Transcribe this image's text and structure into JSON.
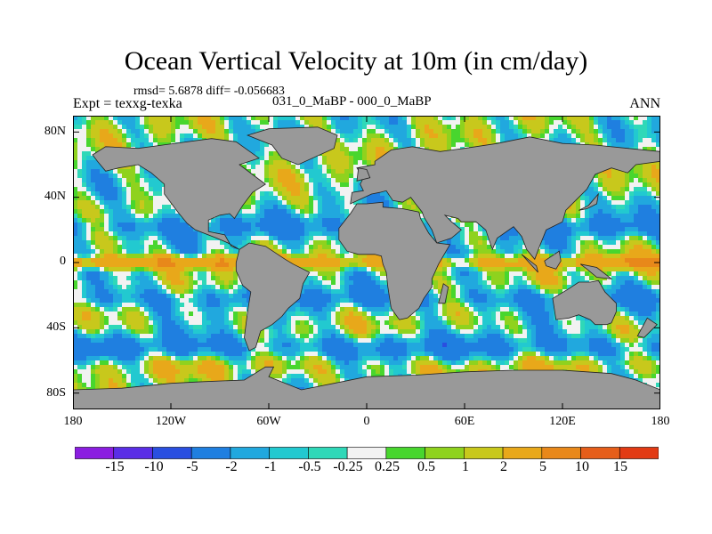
{
  "title": "Ocean Vertical Velocity at 10m (in cm/day)",
  "stats": "rmsd= 5.6878 diff= -0.056683",
  "experiment": "Expt = texxg-texka",
  "case": "031_0_MaBP - 000_0_MaBP",
  "season": "ANN",
  "lat_ticks": [
    "80N",
    "40N",
    "0",
    "40S",
    "80S"
  ],
  "lon_ticks": [
    "180",
    "120W",
    "60W",
    "0",
    "60E",
    "120E",
    "180"
  ],
  "colorbar": {
    "labels": [
      "-15",
      "-10",
      "-5",
      "-2",
      "-1",
      "-0.5",
      "-0.25",
      "0.25",
      "0.5",
      "1",
      "2",
      "5",
      "10",
      "15"
    ],
    "colors": [
      "#8b1ee0",
      "#5a2ee6",
      "#2a4fe0",
      "#1f7fe0",
      "#21a8de",
      "#22c9d0",
      "#2fd8b8",
      "#f2f2f2",
      "#48d62e",
      "#8fd21e",
      "#c8c81c",
      "#e8a81a",
      "#e8881a",
      "#e65e1a",
      "#e23a14"
    ]
  },
  "land_color": "#999999"
}
